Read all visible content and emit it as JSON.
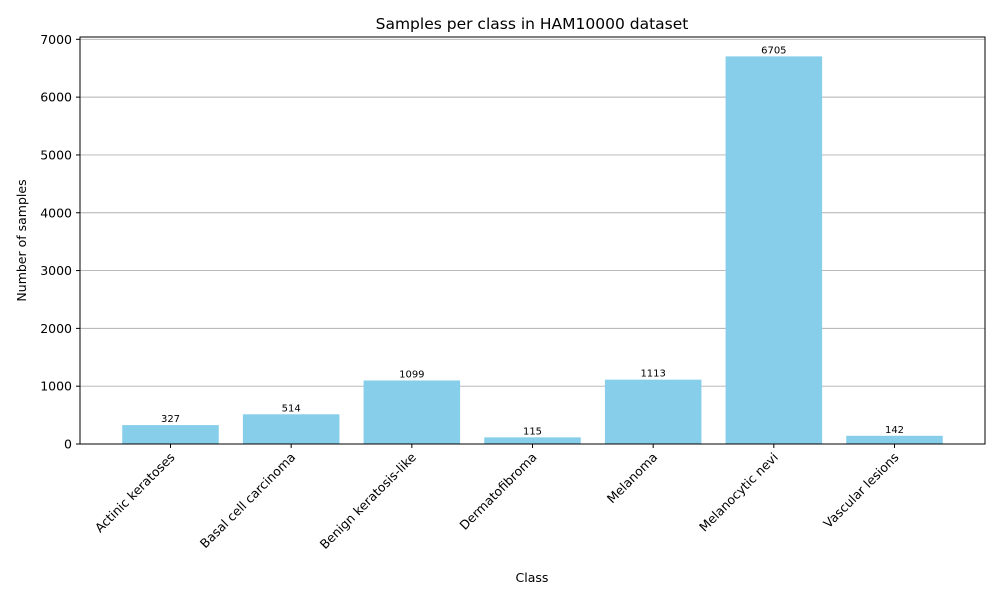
{
  "chart_data": {
    "type": "bar",
    "title": "Samples per class in HAM10000 dataset",
    "xlabel": "Class",
    "ylabel": "Number of samples",
    "categories": [
      "Actinic keratoses",
      "Basal cell carcinoma",
      "Benign keratosis-like",
      "Dermatofibroma",
      "Melanoma",
      "Melanocytic nevi",
      "Vascular lesions"
    ],
    "values": [
      327,
      514,
      1099,
      115,
      1113,
      6705,
      142
    ],
    "data_labels": [
      "327",
      "514",
      "1099",
      "115",
      "1113",
      "6705",
      "142"
    ],
    "ylim": [
      0,
      7040
    ],
    "yticks": [
      0,
      1000,
      2000,
      3000,
      4000,
      5000,
      6000,
      7000
    ],
    "ytick_labels": [
      "0",
      "1000",
      "2000",
      "3000",
      "4000",
      "5000",
      "6000",
      "7000"
    ],
    "grid": "y",
    "bar_color": "#87ceeb"
  }
}
